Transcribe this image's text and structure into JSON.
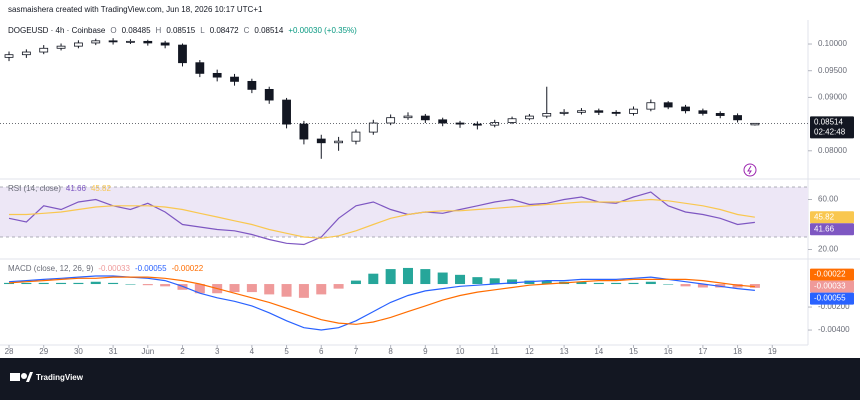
{
  "header": {
    "credit": "sasmaishera created with TradingView.com, Jun 18, 2026 10:17 UTC+1"
  },
  "footer": {
    "brand": "TradingView"
  },
  "chart_data": [
    {
      "type": "candlestick",
      "symbol": "DOGEUSD · 4h · Coinbase",
      "legend_ohlc": [
        {
          "label": "O",
          "value": 0.08485
        },
        {
          "label": "H",
          "value": 0.08515
        },
        {
          "label": "L",
          "value": 0.08472
        },
        {
          "label": "C",
          "value": 0.08514
        }
      ],
      "change": "+0.00030 (+0.35%)",
      "countdown": "02:42:48",
      "x": [
        28,
        28.5,
        29,
        29.5,
        30,
        30.5,
        31,
        31.5,
        32,
        32.5,
        33,
        33.5,
        34,
        34.5,
        35,
        35.5,
        36,
        36.5,
        37,
        37.5,
        38,
        38.5,
        39,
        39.5,
        40,
        40.5,
        41,
        41.5,
        42,
        42.5,
        43,
        43.5,
        44,
        44.5,
        45,
        45.5,
        46,
        46.5,
        47,
        47.5,
        48,
        48.5,
        49,
        49.5
      ],
      "open": [
        0.0975,
        0.098,
        0.0985,
        0.0992,
        0.0996,
        0.1002,
        0.1006,
        0.1004,
        0.1005,
        0.1002,
        0.0998,
        0.0965,
        0.0945,
        0.0938,
        0.093,
        0.0915,
        0.0895,
        0.085,
        0.0822,
        0.0815,
        0.0818,
        0.0835,
        0.0852,
        0.0862,
        0.0865,
        0.0858,
        0.0852,
        0.085,
        0.0848,
        0.0853,
        0.086,
        0.0865,
        0.087,
        0.0872,
        0.0875,
        0.0872,
        0.087,
        0.0878,
        0.089,
        0.0882,
        0.0875,
        0.087,
        0.0866,
        0.08485
      ],
      "high": [
        0.0986,
        0.099,
        0.0998,
        0.1001,
        0.1007,
        0.101,
        0.1011,
        0.1009,
        0.1008,
        0.1006,
        0.1001,
        0.097,
        0.0952,
        0.0944,
        0.0935,
        0.092,
        0.0899,
        0.0856,
        0.083,
        0.0826,
        0.084,
        0.0858,
        0.0868,
        0.0872,
        0.0869,
        0.0862,
        0.0856,
        0.0855,
        0.0858,
        0.0864,
        0.0869,
        0.092,
        0.0878,
        0.088,
        0.0879,
        0.0876,
        0.0883,
        0.0896,
        0.0893,
        0.0886,
        0.0879,
        0.0874,
        0.087,
        0.08515
      ],
      "low": [
        0.0968,
        0.0974,
        0.0981,
        0.0988,
        0.0992,
        0.0998,
        0.0999,
        0.1,
        0.0997,
        0.0992,
        0.0958,
        0.0938,
        0.093,
        0.0922,
        0.0908,
        0.0888,
        0.0842,
        0.0812,
        0.0785,
        0.08,
        0.0812,
        0.083,
        0.0848,
        0.0858,
        0.0852,
        0.0846,
        0.0843,
        0.084,
        0.0844,
        0.085,
        0.0857,
        0.0861,
        0.0866,
        0.0868,
        0.0867,
        0.0865,
        0.0866,
        0.0874,
        0.0878,
        0.087,
        0.0866,
        0.0861,
        0.0853,
        0.08472
      ],
      "close": [
        0.098,
        0.0985,
        0.0992,
        0.0996,
        0.1002,
        0.1006,
        0.1004,
        0.1005,
        0.1002,
        0.0998,
        0.0965,
        0.0945,
        0.0938,
        0.093,
        0.0915,
        0.0895,
        0.085,
        0.0822,
        0.0815,
        0.0818,
        0.0835,
        0.0852,
        0.0862,
        0.0865,
        0.0858,
        0.0852,
        0.085,
        0.0848,
        0.0853,
        0.086,
        0.0865,
        0.087,
        0.0872,
        0.0875,
        0.0872,
        0.087,
        0.0878,
        0.089,
        0.0882,
        0.0875,
        0.087,
        0.0866,
        0.0858,
        0.08514
      ],
      "up_color": "#ffffff",
      "down_color": "#131722",
      "xlim": [
        27.74,
        51.03
      ],
      "ylim": [
        0.0749,
        0.1045
      ],
      "yticks": [
        {
          "value": 0.1,
          "label": "0.10000"
        },
        {
          "value": 0.095,
          "label": "0.09500"
        },
        {
          "value": 0.09,
          "label": "0.09000"
        },
        {
          "value": 0.08,
          "label": "0.08000"
        }
      ]
    },
    {
      "type": "line",
      "title": "RSI (14, close)",
      "x": [
        28,
        28.5,
        29,
        29.5,
        30,
        30.5,
        31,
        31.5,
        32,
        32.5,
        33,
        33.5,
        34,
        34.5,
        35,
        35.5,
        36,
        36.5,
        37,
        37.5,
        38,
        38.5,
        39,
        39.5,
        40,
        40.5,
        41,
        41.5,
        42,
        42.5,
        43,
        43.5,
        44,
        44.5,
        45,
        45.5,
        46,
        46.5,
        47,
        47.5,
        48,
        48.5,
        49,
        49.5
      ],
      "series": [
        {
          "color": "#7e57c2",
          "values": [
            45,
            42,
            55,
            52,
            58,
            60,
            55,
            52,
            57,
            50,
            40,
            38,
            36,
            35,
            32,
            28,
            25,
            24,
            30,
            45,
            55,
            58,
            52,
            48,
            50,
            49,
            52,
            55,
            58,
            60,
            56,
            57,
            60,
            62,
            58,
            57,
            62,
            66,
            55,
            50,
            48,
            45,
            40,
            41.66
          ]
        },
        {
          "color": "#f9c74f",
          "values": [
            48,
            48,
            49,
            50,
            52,
            54,
            55,
            55,
            55,
            54,
            52,
            49,
            46,
            43,
            40,
            36,
            33,
            30,
            29,
            31,
            35,
            40,
            45,
            48,
            50,
            51,
            51,
            52,
            53,
            54,
            55,
            56,
            57,
            58,
            58,
            58,
            59,
            60,
            59,
            57,
            55,
            52,
            48,
            45.82
          ]
        }
      ],
      "band": [
        30,
        70
      ],
      "band_color": "#ede7f6",
      "xlim": [
        27.74,
        51.03
      ],
      "ylim": [
        13.2,
        75.6
      ],
      "yticks": [
        {
          "value": 60,
          "label": "60.00"
        },
        {
          "value": 20,
          "label": "20.00"
        }
      ]
    },
    {
      "type": "macd",
      "title": "MACD (close, 12, 26, 9)",
      "x": [
        28,
        28.5,
        29,
        29.5,
        30,
        30.5,
        31,
        31.5,
        32,
        32.5,
        33,
        33.5,
        34,
        34.5,
        35,
        35.5,
        36,
        36.5,
        37,
        37.5,
        38,
        38.5,
        39,
        39.5,
        40,
        40.5,
        41,
        41.5,
        42,
        42.5,
        43,
        43.5,
        44,
        44.5,
        45,
        45.5,
        46,
        46.5,
        47,
        47.5,
        48,
        48.5,
        49,
        49.5
      ],
      "histogram": {
        "up_color": "#26a69a",
        "down_color": "#ef9a9a",
        "values": [
          0.0001,
          0.0001,
          0.0001,
          0.0001,
          0.0001,
          0.0002,
          0.0001,
          0,
          -0.0001,
          -0.0002,
          -0.0005,
          -0.0008,
          -0.0008,
          -0.0007,
          -0.0007,
          -0.0009,
          -0.0011,
          -0.0012,
          -0.0009,
          -0.0004,
          0.0003,
          0.0009,
          0.0013,
          0.0014,
          0.0013,
          0.001,
          0.0008,
          0.0006,
          0.0005,
          0.0004,
          0.0003,
          0.0003,
          0.0002,
          0.0002,
          0.0001,
          0.0001,
          0.0001,
          0.0002,
          0,
          -0.0002,
          -0.0003,
          -0.0003,
          -0.0003,
          -0.00033
        ]
      },
      "series": [
        {
          "color": "#2962ff",
          "values": [
            0.0002,
            0.0003,
            0.0004,
            0.0005,
            0.0006,
            0.0007,
            0.0007,
            0.0006,
            0.0005,
            0.0003,
            -0.0002,
            -0.0008,
            -0.0012,
            -0.0015,
            -0.0019,
            -0.0025,
            -0.0032,
            -0.0038,
            -0.004,
            -0.0038,
            -0.0032,
            -0.0024,
            -0.0016,
            -0.001,
            -0.0006,
            -0.0004,
            -0.0002,
            -0.0001,
            0,
            0.0001,
            0.0002,
            0.0003,
            0.0003,
            0.0004,
            0.0004,
            0.0004,
            0.0005,
            0.0006,
            0.0004,
            0.0002,
            0,
            -0.0002,
            -0.0004,
            -0.00055
          ]
        },
        {
          "color": "#ff6d00",
          "values": [
            0.0001,
            0.0002,
            0.0003,
            0.0004,
            0.0005,
            0.0005,
            0.0006,
            0.0006,
            0.0006,
            0.0005,
            0.0003,
            0,
            -0.0004,
            -0.0008,
            -0.0012,
            -0.0016,
            -0.0021,
            -0.0026,
            -0.0031,
            -0.0034,
            -0.0035,
            -0.0033,
            -0.0029,
            -0.0024,
            -0.0019,
            -0.0014,
            -0.001,
            -0.0007,
            -0.0005,
            -0.0003,
            -0.0001,
            0,
            0.0001,
            0.0002,
            0.0003,
            0.0003,
            0.0004,
            0.0004,
            0.0004,
            0.0004,
            0.0003,
            0.0001,
            -0.0001,
            -0.00022
          ]
        }
      ],
      "xlim": [
        27.74,
        51.03
      ],
      "ylim": [
        -0.0053,
        0.00209
      ],
      "yticks": [
        {
          "value": -0.002,
          "label": "-0.00200"
        },
        {
          "value": -0.004,
          "label": "-0.00400"
        }
      ],
      "xticks": [
        28,
        29,
        30,
        31,
        {
          "value": 32,
          "label": "Jun"
        },
        {
          "value": 33,
          "label": "2"
        },
        {
          "value": 34,
          "label": "3"
        },
        {
          "value": 35,
          "label": "4"
        },
        {
          "value": 36,
          "label": "5"
        },
        {
          "value": 37,
          "label": "6"
        },
        {
          "value": 38,
          "label": "7"
        },
        {
          "value": 39,
          "label": "8"
        },
        {
          "value": 40,
          "label": "9"
        },
        {
          "value": 41,
          "label": "10"
        },
        {
          "value": 42,
          "label": "11"
        },
        {
          "value": 43,
          "label": "12"
        },
        {
          "value": 44,
          "label": "13"
        },
        {
          "value": 45,
          "label": "14"
        },
        {
          "value": 46,
          "label": "15"
        },
        {
          "value": 47,
          "label": "16"
        },
        {
          "value": 48,
          "label": "17"
        },
        {
          "value": 49,
          "label": "18"
        },
        {
          "value": 50,
          "label": "19"
        }
      ]
    }
  ]
}
